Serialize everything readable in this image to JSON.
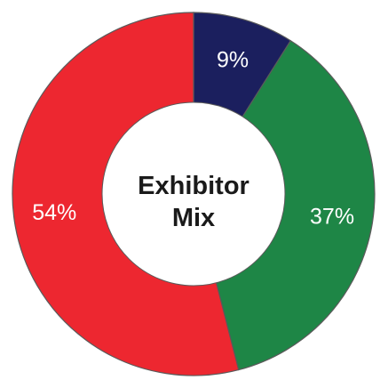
{
  "chart_data": {
    "type": "pie",
    "title_lines": [
      "Exhibitor",
      "Mix"
    ],
    "slices": [
      {
        "label": "9%",
        "value": 9,
        "color": "#1b1f5e"
      },
      {
        "label": "37%",
        "value": 37,
        "color": "#1e8646"
      },
      {
        "label": "54%",
        "value": 54,
        "color": "#ed2730"
      }
    ],
    "start_angle_deg": 0,
    "direction": "clockwise",
    "donut": true,
    "center_color": "#ffffff",
    "stroke_color": "#5a5a5a",
    "legend": "none"
  }
}
